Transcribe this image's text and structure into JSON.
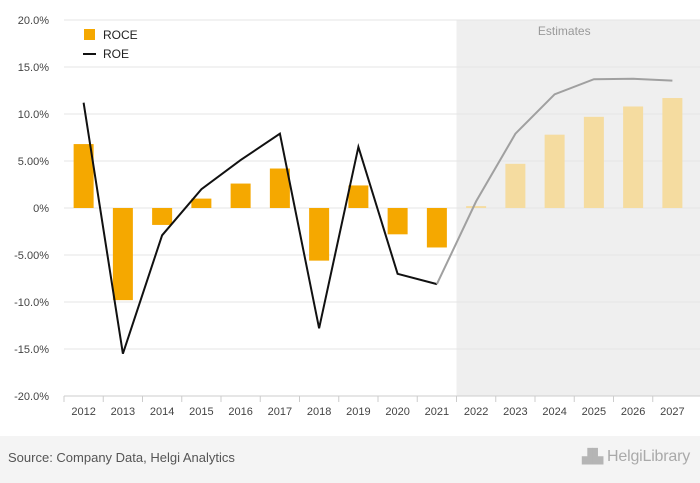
{
  "chart_data": {
    "type": "bar",
    "categories": [
      "2012",
      "2013",
      "2014",
      "2015",
      "2016",
      "2017",
      "2018",
      "2019",
      "2020",
      "2021",
      "2022",
      "2023",
      "2024",
      "2025",
      "2026",
      "2027"
    ],
    "estimate_from": "2022",
    "estimates_label": "Estimates",
    "series": [
      {
        "name": "ROCE",
        "kind": "bar",
        "color": "#f5a800",
        "estimate_color": "#f5dca0",
        "values": [
          6.8,
          -9.8,
          -1.8,
          1.0,
          2.6,
          4.2,
          -5.6,
          2.4,
          -2.8,
          -4.2,
          0.2,
          4.7,
          7.8,
          9.7,
          10.8,
          11.7
        ]
      },
      {
        "name": "ROE",
        "kind": "line",
        "color": "#111111",
        "estimate_color": "#a0a0a0",
        "values": [
          11.2,
          -15.5,
          -2.9,
          2.0,
          5.1,
          7.9,
          -12.8,
          6.5,
          -7.0,
          -8.1,
          0.7,
          7.9,
          12.1,
          13.7,
          13.75,
          13.55
        ]
      }
    ],
    "y_axis": {
      "ylim": [
        -20,
        20
      ],
      "ticks": [
        -20,
        -15,
        -10,
        -5,
        0,
        5,
        10,
        15,
        20
      ],
      "tick_labels": [
        "-20.0%",
        "-15.0%",
        "-10.0%",
        "-5.00%",
        "0%",
        "5.00%",
        "10.0%",
        "15.0%",
        "20.0%"
      ]
    },
    "xlabel": "",
    "ylabel": "",
    "title": ""
  },
  "footer": {
    "source": "Source: Company Data, Helgi Analytics",
    "brand": "HelgiLibrary"
  },
  "colors": {
    "estimate_band": "#efefef",
    "grid": "#e6e6e6"
  }
}
